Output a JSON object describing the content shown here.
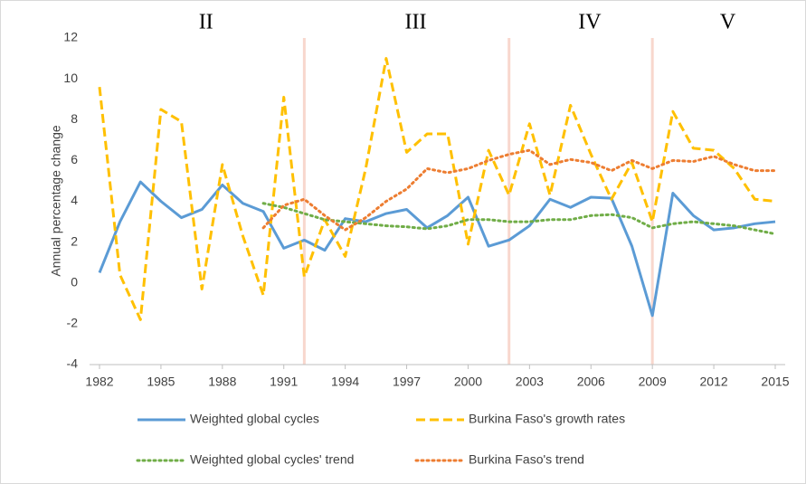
{
  "chart_data": {
    "type": "line",
    "y_label": "Annual percentage change",
    "x": [
      1982,
      1983,
      1984,
      1985,
      1986,
      1987,
      1988,
      1989,
      1990,
      1991,
      1992,
      1993,
      1994,
      1995,
      1996,
      1997,
      1998,
      1999,
      2000,
      2001,
      2002,
      2003,
      2004,
      2005,
      2006,
      2007,
      2008,
      2009,
      2010,
      2011,
      2012,
      2013,
      2014,
      2015
    ],
    "xlim": [
      1982,
      2015
    ],
    "xticks": [
      1982,
      1985,
      1988,
      1991,
      1994,
      1997,
      2000,
      2003,
      2006,
      2009,
      2012,
      2015
    ],
    "ylim": [
      -4,
      12
    ],
    "yticks": [
      -4,
      -2,
      0,
      2,
      4,
      6,
      8,
      10,
      12
    ],
    "grid": false,
    "period_boundaries": [
      1992,
      2002,
      2009
    ],
    "period_labels": [
      "II",
      "III",
      "IV",
      "V"
    ],
    "series": [
      {
        "name": "Weighted global cycles",
        "color": "#5b9bd5",
        "dash": "solid",
        "values": [
          0.5,
          3.0,
          4.95,
          4.0,
          3.2,
          3.6,
          4.8,
          3.9,
          3.5,
          1.7,
          2.1,
          1.6,
          3.15,
          3.0,
          3.4,
          3.6,
          2.7,
          3.3,
          4.2,
          1.8,
          2.1,
          2.8,
          4.1,
          3.7,
          4.2,
          4.15,
          1.8,
          -1.6,
          4.4,
          3.3,
          2.6,
          2.7,
          2.9,
          3.0
        ]
      },
      {
        "name": "Burkina Faso's growth rates",
        "color": "#ffc000",
        "dash": "dashed",
        "values": [
          9.6,
          0.4,
          -1.8,
          8.5,
          7.9,
          -0.3,
          5.8,
          2.3,
          -0.6,
          9.1,
          0.3,
          3.1,
          1.3,
          5.6,
          11.0,
          6.4,
          7.3,
          7.3,
          1.9,
          6.5,
          4.3,
          7.8,
          4.3,
          8.7,
          6.3,
          4.1,
          5.9,
          3.0,
          8.4,
          6.6,
          6.5,
          5.6,
          4.1,
          4.0
        ]
      },
      {
        "name": "Weighted global cycles' trend",
        "color": "#70ad47",
        "dash": "dotted",
        "values": [
          null,
          null,
          null,
          null,
          null,
          null,
          null,
          null,
          3.9,
          3.7,
          3.4,
          3.1,
          3.0,
          2.9,
          2.8,
          2.75,
          2.65,
          2.8,
          3.1,
          3.1,
          3.0,
          3.0,
          3.1,
          3.1,
          3.3,
          3.35,
          3.2,
          2.7,
          2.9,
          3.0,
          2.9,
          2.8,
          2.6,
          2.4
        ]
      },
      {
        "name": "Burkina Faso's trend",
        "color": "#ed7d31",
        "dash": "dotted",
        "values": [
          null,
          null,
          null,
          null,
          null,
          null,
          null,
          null,
          2.7,
          3.8,
          4.1,
          3.3,
          2.6,
          3.2,
          4.0,
          4.6,
          5.6,
          5.4,
          5.6,
          6.0,
          6.3,
          6.5,
          5.8,
          6.05,
          5.9,
          5.5,
          6.0,
          5.6,
          6.0,
          5.95,
          6.2,
          5.8,
          5.5,
          5.5
        ]
      }
    ]
  }
}
